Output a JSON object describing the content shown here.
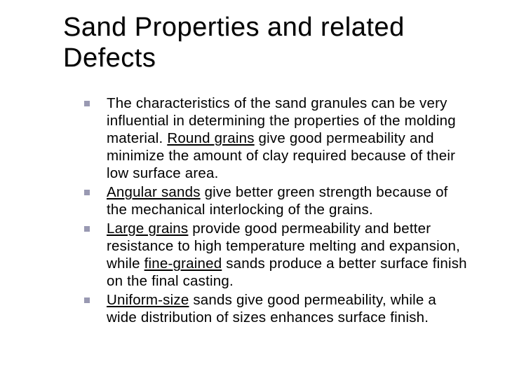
{
  "slide": {
    "title": "Sand Properties and related Defects",
    "title_fontsize": 38,
    "title_color": "#000000",
    "body_fontsize": 20.5,
    "body_color": "#000000",
    "bullet_marker_color": "#9999b2",
    "bullet_marker_size": 8,
    "background_color": "#ffffff",
    "bullets": [
      {
        "pre": "The characteristics of the sand granules can be very influential in determining the properties of the molding material. ",
        "u1": "Round grains",
        "post": " give good permeability and minimize the amount of clay required because of their low surface area."
      },
      {
        "pre": "",
        "u1": "Angular sands",
        "post": " give better green strength because of the mechanical interlocking of the grains."
      },
      {
        "pre": "",
        "u1": "Large grains",
        "mid": " provide good permeability and better resistance to high temperature melting and expansion, while ",
        "u2": "fine-grained",
        "post": " sands produce a better surface finish on the final casting."
      },
      {
        "pre": "",
        "u1": "Uniform-size",
        "post": " sands give good permeability, while a wide distribution of sizes enhances surface finish."
      }
    ]
  }
}
